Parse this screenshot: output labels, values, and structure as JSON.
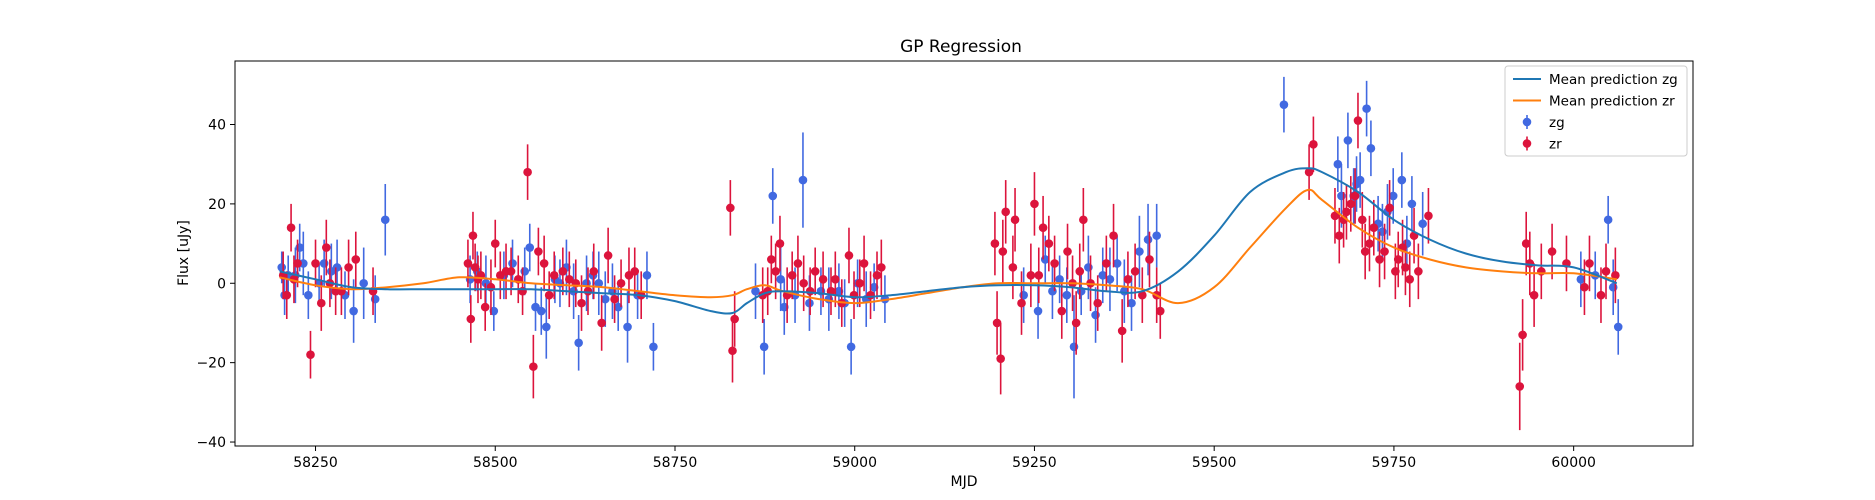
{
  "chart_data": {
    "type": "scatter",
    "title": "GP Regression",
    "xlabel": "MJD",
    "ylabel": "Flux [uJy]",
    "xlim": [
      58138,
      60166
    ],
    "ylim": [
      -41,
      56
    ],
    "x_ticks": [
      58250,
      58500,
      58750,
      59000,
      59250,
      59500,
      59750,
      60000
    ],
    "y_ticks": [
      -40,
      -20,
      0,
      20,
      40
    ],
    "grid": false,
    "legend_position": "top-right",
    "legend": [
      {
        "label": "Mean prediction zg",
        "kind": "line",
        "color": "#1f77b4"
      },
      {
        "label": "Mean prediction zr",
        "kind": "line",
        "color": "#ff7f0e"
      },
      {
        "label": "zg",
        "kind": "errorbar",
        "color": "#4169e1"
      },
      {
        "label": "zr",
        "kind": "errorbar",
        "color": "#dc143c"
      }
    ],
    "series": [
      {
        "name": "Mean prediction zg",
        "type": "line",
        "color": "#1f77b4",
        "x": [
          58200,
          58250,
          58300,
          58350,
          58400,
          58450,
          58500,
          58550,
          58600,
          58650,
          58700,
          58750,
          58800,
          58830,
          58850,
          58875,
          58900,
          58950,
          59000,
          59050,
          59100,
          59150,
          59200,
          59250,
          59300,
          59350,
          59400,
          59450,
          59500,
          59550,
          59600,
          59630,
          59650,
          59700,
          59750,
          59800,
          59850,
          59900,
          59950,
          60000,
          60060
        ],
        "y": [
          3,
          1,
          -1,
          -1.5,
          -1.5,
          -1.5,
          -1.5,
          -1.5,
          -2,
          -2.5,
          -3,
          -4.5,
          -7,
          -7.5,
          -5,
          -2.5,
          -2,
          -2.5,
          -3.5,
          -3,
          -2,
          -1,
          -0.5,
          -0.5,
          -1,
          -2,
          -2,
          3,
          12,
          23,
          28,
          29,
          28,
          23,
          16,
          11,
          7.5,
          5.5,
          4.5,
          4,
          0
        ]
      },
      {
        "name": "Mean prediction zr",
        "type": "line",
        "color": "#ff7f0e",
        "x": [
          58200,
          58250,
          58300,
          58350,
          58400,
          58450,
          58500,
          58550,
          58600,
          58650,
          58700,
          58750,
          58800,
          58830,
          58850,
          58875,
          58900,
          58950,
          59000,
          59050,
          59100,
          59150,
          59200,
          59250,
          59300,
          59350,
          59400,
          59450,
          59500,
          59550,
          59600,
          59630,
          59650,
          59700,
          59750,
          59800,
          59850,
          59900,
          59950,
          60000,
          60060
        ],
        "y": [
          1.5,
          -0.5,
          -1.5,
          -1,
          0,
          1.5,
          1,
          0,
          -0.5,
          -1,
          -2,
          -3,
          -3.5,
          -3,
          -1.5,
          -0.5,
          -2,
          -4,
          -5,
          -4,
          -2.5,
          -1,
          0,
          0,
          0,
          -0.5,
          -1.5,
          -5,
          -1,
          9,
          19,
          23.5,
          21,
          14,
          9,
          6,
          4,
          3,
          2.5,
          2.5,
          1
        ]
      },
      {
        "name": "zg",
        "type": "errorbar",
        "color": "#4169e1",
        "x": [
          58203,
          58207,
          58212,
          58222,
          58228,
          58233,
          58240,
          58255,
          58262,
          58272,
          58280,
          58291,
          58303,
          58317,
          58333,
          58347,
          58465,
          58475,
          58487,
          58498,
          58512,
          58524,
          58541,
          58548,
          58556,
          58564,
          58571,
          58583,
          58590,
          58599,
          58609,
          58616,
          58627,
          58636,
          58644,
          58653,
          58663,
          58671,
          58684,
          58698,
          58711,
          58720,
          58862,
          58874,
          58886,
          58897,
          58902,
          58917,
          58928,
          58937,
          58953,
          58964,
          58978,
          58986,
          58995,
          59004,
          59016,
          59027,
          59042,
          59235,
          59255,
          59265,
          59275,
          59285,
          59295,
          59305,
          59315,
          59325,
          59335,
          59345,
          59355,
          59365,
          59375,
          59385,
          59396,
          59408,
          59420,
          59597,
          59672,
          59677,
          59686,
          59694,
          59698,
          59703,
          59712,
          59718,
          59728,
          59734,
          59741,
          59749,
          59761,
          59768,
          59775,
          59790,
          60010,
          60030,
          60048,
          60055,
          60062
        ],
        "y": [
          4,
          -3,
          2,
          2,
          9,
          5,
          -3,
          0,
          5,
          3,
          4,
          -3,
          -7,
          0,
          -4,
          16,
          1,
          3,
          0,
          -7,
          2,
          5,
          3,
          9,
          -6,
          -7,
          -11,
          1,
          0,
          4,
          -2,
          -15,
          0,
          2,
          0,
          -4,
          -2,
          -6,
          -11,
          -3,
          2,
          -16,
          -2,
          -16,
          22,
          1,
          -6,
          -3,
          26,
          -5,
          -2,
          -4,
          -2,
          -5,
          -16,
          0,
          -4,
          -1,
          -4,
          -3,
          -7,
          6,
          -2,
          1,
          -3,
          -16,
          -2,
          4,
          -8,
          2,
          1,
          5,
          -2,
          -5,
          8,
          11,
          12,
          45,
          30,
          22,
          36,
          22,
          25,
          26,
          44,
          34,
          15,
          13,
          18,
          22,
          26,
          10,
          20,
          15,
          1,
          2,
          16,
          -1,
          -11
        ],
        "err": [
          4,
          5,
          5,
          7,
          6,
          8,
          6,
          5,
          6,
          7,
          7,
          6,
          8,
          9,
          6,
          9,
          6,
          5,
          7,
          5,
          6,
          6,
          6,
          6,
          6,
          6,
          8,
          6,
          6,
          7,
          7,
          7,
          7,
          6,
          8,
          7,
          7,
          6,
          9,
          6,
          6,
          6,
          7,
          7,
          7,
          8,
          7,
          7,
          12,
          7,
          6,
          8,
          7,
          6,
          7,
          6,
          7,
          6,
          6,
          7,
          7,
          6,
          7,
          6,
          7,
          13,
          6,
          8,
          7,
          7,
          8,
          7,
          8,
          7,
          9,
          9,
          8,
          7,
          7,
          8,
          7,
          7,
          7,
          7,
          7,
          7,
          7,
          7,
          7,
          7,
          7,
          7,
          7,
          8,
          7,
          6,
          6,
          7,
          7
        ]
      },
      {
        "name": "zr",
        "type": "errorbar",
        "color": "#dc143c",
        "x": [
          58205,
          58210,
          58216,
          58220,
          58225,
          58243,
          58250,
          58258,
          58265,
          58270,
          58278,
          58286,
          58296,
          58306,
          58330,
          58462,
          58466,
          58469,
          58472,
          58476,
          58480,
          58486,
          58494,
          58500,
          58507,
          58515,
          58522,
          58532,
          58538,
          58545,
          58553,
          58560,
          58568,
          58575,
          58582,
          58594,
          58603,
          58612,
          58620,
          58629,
          58637,
          58648,
          58657,
          58666,
          58675,
          58686,
          58694,
          58703,
          58827,
          58830,
          58833,
          58872,
          58879,
          58884,
          58890,
          58896,
          58906,
          58913,
          58921,
          58929,
          58938,
          58945,
          58956,
          58967,
          58973,
          58982,
          58992,
          58999,
          59007,
          59013,
          59022,
          59031,
          59037,
          59195,
          59198,
          59203,
          59206,
          59210,
          59220,
          59223,
          59232,
          59245,
          59250,
          59256,
          59262,
          59270,
          59278,
          59288,
          59296,
          59303,
          59308,
          59313,
          59318,
          59328,
          59338,
          59350,
          59360,
          59372,
          59380,
          59390,
          59400,
          59410,
          59420,
          59425,
          59632,
          59638,
          59668,
          59674,
          59680,
          59684,
          59690,
          59696,
          59700,
          59706,
          59710,
          59716,
          59722,
          59730,
          59737,
          59744,
          59752,
          59756,
          59762,
          59766,
          59772,
          59778,
          59784,
          59798,
          59925,
          59929,
          59934,
          59939,
          59945,
          59955,
          59970,
          59990,
          60015,
          60022,
          60038,
          60045,
          60058
        ],
        "y": [
          2,
          -3,
          14,
          1,
          5,
          -18,
          5,
          -5,
          9,
          0,
          -2,
          -2,
          4,
          6,
          -2,
          5,
          -9,
          12,
          4,
          1,
          2,
          -6,
          -1,
          10,
          2,
          3,
          3,
          1,
          -2,
          28,
          -21,
          8,
          5,
          -3,
          2,
          3,
          1,
          0,
          -5,
          -2,
          3,
          -10,
          7,
          -4,
          0,
          2,
          3,
          -3,
          19,
          -17,
          -9,
          -3,
          -2,
          6,
          3,
          10,
          -3,
          2,
          5,
          0,
          -2,
          3,
          1,
          -2,
          1,
          -5,
          7,
          -3,
          0,
          5,
          -3,
          2,
          4,
          10,
          -10,
          -19,
          8,
          18,
          4,
          16,
          -5,
          2,
          20,
          2,
          14,
          10,
          5,
          -7,
          8,
          0,
          -10,
          3,
          16,
          0,
          -5,
          5,
          12,
          -12,
          1,
          3,
          -3,
          6,
          -3,
          -7,
          28,
          35,
          17,
          12,
          16,
          18,
          20,
          22,
          41,
          16,
          8,
          10,
          14,
          6,
          8,
          19,
          3,
          6,
          9,
          4,
          1,
          12,
          3,
          17,
          -26,
          -13,
          10,
          5,
          -3,
          3,
          8,
          5,
          -1,
          5,
          -3,
          3,
          2
        ],
        "err": [
          6,
          6,
          6,
          6,
          6,
          6,
          6,
          7,
          7,
          6,
          6,
          6,
          7,
          7,
          6,
          6,
          6,
          6,
          6,
          6,
          6,
          6,
          7,
          6,
          6,
          7,
          6,
          6,
          6,
          7,
          8,
          6,
          7,
          6,
          6,
          6,
          7,
          6,
          7,
          6,
          7,
          7,
          7,
          6,
          6,
          7,
          6,
          6,
          7,
          8,
          7,
          7,
          6,
          6,
          7,
          7,
          7,
          6,
          7,
          7,
          6,
          6,
          7,
          6,
          7,
          6,
          7,
          6,
          6,
          7,
          6,
          6,
          7,
          8,
          8,
          9,
          8,
          8,
          8,
          8,
          8,
          8,
          8,
          7,
          8,
          7,
          7,
          7,
          7,
          7,
          8,
          7,
          8,
          7,
          7,
          7,
          8,
          8,
          7,
          7,
          7,
          7,
          7,
          7,
          7,
          7,
          7,
          7,
          7,
          7,
          7,
          7,
          7,
          7,
          7,
          7,
          7,
          7,
          7,
          7,
          7,
          7,
          7,
          7,
          7,
          7,
          7,
          7,
          11,
          9,
          8,
          8,
          8,
          7,
          7,
          7,
          7,
          7,
          7,
          7,
          7
        ]
      }
    ]
  }
}
